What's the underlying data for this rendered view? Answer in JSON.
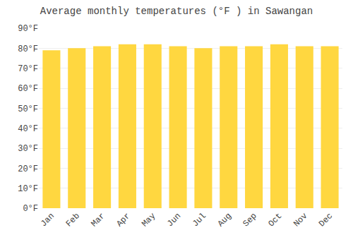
{
  "chart_data": {
    "type": "bar",
    "title": "Average monthly temperatures (°F ) in Sawangan",
    "categories": [
      "Jan",
      "Feb",
      "Mar",
      "Apr",
      "May",
      "Jun",
      "Jul",
      "Aug",
      "Sep",
      "Oct",
      "Nov",
      "Dec"
    ],
    "values": [
      79,
      80,
      81,
      82,
      82,
      81,
      80,
      81,
      81,
      82,
      81,
      81
    ],
    "color": "#FFD740",
    "ylim": [
      0,
      90
    ],
    "yticks": [
      {
        "value": 0,
        "label": "0°F"
      },
      {
        "value": 10,
        "label": "10°F"
      },
      {
        "value": 20,
        "label": "20°F"
      },
      {
        "value": 30,
        "label": "30°F"
      },
      {
        "value": 40,
        "label": "40°F"
      },
      {
        "value": 50,
        "label": "50°F"
      },
      {
        "value": 60,
        "label": "60°F"
      },
      {
        "value": 70,
        "label": "70°F"
      },
      {
        "value": 80,
        "label": "80°F"
      },
      {
        "value": 90,
        "label": "90°F"
      }
    ],
    "grid": true
  }
}
